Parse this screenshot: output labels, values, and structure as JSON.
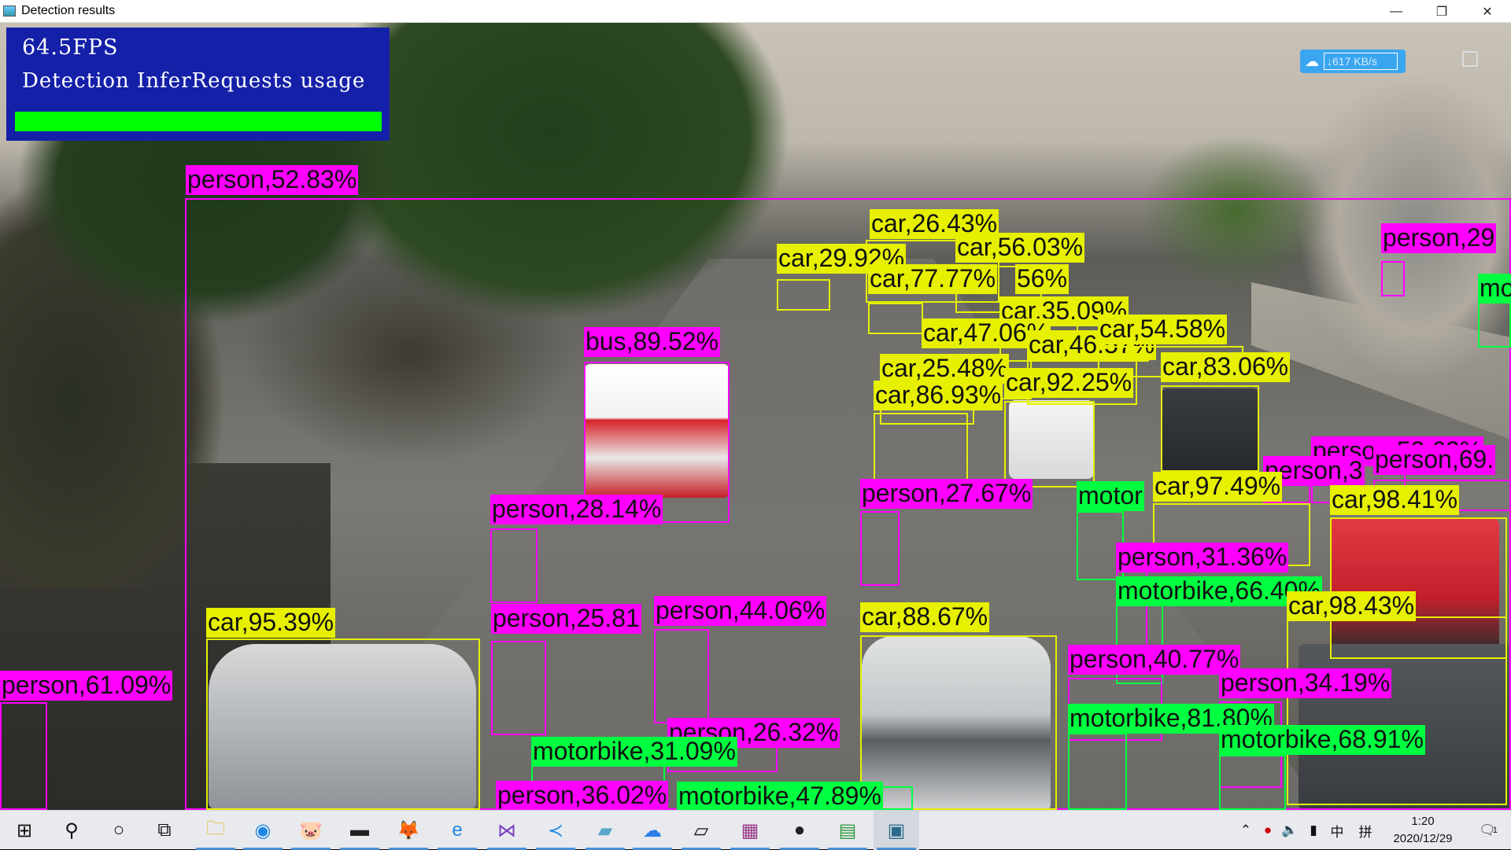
{
  "window": {
    "title": "Detection results",
    "minimize_icon": "minimize-icon",
    "restore_icon": "restore-icon",
    "close_icon": "close-icon"
  },
  "overlay": {
    "fps": "64.5FPS",
    "usage_label": "Detection InferRequests usage",
    "usage_fraction": 1.0,
    "bar_color": "#00ff00",
    "panel_color": "#1420a8"
  },
  "speed_widget": {
    "text": "617 KB/s",
    "icon": "download-arrow-icon"
  },
  "colors": {
    "person": "#ff00ff",
    "car": "#e6f000",
    "bus": "#ff00ff",
    "motorbike": "#00ff40"
  },
  "detections": [
    {
      "label": "person,52.83%",
      "cls": "person"
    },
    {
      "label": "bus,89.52%",
      "cls": "bus"
    },
    {
      "label": "car,26.43%",
      "cls": "car"
    },
    {
      "label": "car,29.92%",
      "cls": "car"
    },
    {
      "label": "car,56.03%",
      "cls": "car"
    },
    {
      "label": "car,77.77%",
      "cls": "car"
    },
    {
      "label": "56%",
      "cls": "car"
    },
    {
      "label": "car,35.09%",
      "cls": "car"
    },
    {
      "label": "car,47.06%",
      "cls": "car"
    },
    {
      "label": "car,46.57%",
      "cls": "car"
    },
    {
      "label": "car,54.58%",
      "cls": "car"
    },
    {
      "label": "car,25.48%",
      "cls": "car"
    },
    {
      "label": "car,92.25%",
      "cls": "car"
    },
    {
      "label": "car,83.06%",
      "cls": "car"
    },
    {
      "label": "car,86.93%",
      "cls": "car"
    },
    {
      "label": "person,29",
      "cls": "person"
    },
    {
      "label": "mo",
      "cls": "motorbike"
    },
    {
      "label": "person,52.62%",
      "cls": "person"
    },
    {
      "label": "person,69.",
      "cls": "person"
    },
    {
      "label": "person,3",
      "cls": "person"
    },
    {
      "label": "person,27.67%",
      "cls": "person"
    },
    {
      "label": "motor",
      "cls": "motorbike"
    },
    {
      "label": "car,97.49%",
      "cls": "car"
    },
    {
      "label": "car,98.41%",
      "cls": "car"
    },
    {
      "label": "person,28.14%",
      "cls": "person"
    },
    {
      "label": "person,31.36%",
      "cls": "person"
    },
    {
      "label": "motorbike,66.40%",
      "cls": "motorbike"
    },
    {
      "label": "car,98.43%",
      "cls": "car"
    },
    {
      "label": "person,25.81",
      "cls": "person"
    },
    {
      "label": "person,44.06%",
      "cls": "person"
    },
    {
      "label": "car,88.67%",
      "cls": "car"
    },
    {
      "label": "car,95.39%",
      "cls": "car"
    },
    {
      "label": "person,40.77%",
      "cls": "person"
    },
    {
      "label": "person,34.19%",
      "cls": "person"
    },
    {
      "label": "person,61.09%",
      "cls": "person"
    },
    {
      "label": "motorbike,81.80%",
      "cls": "motorbike"
    },
    {
      "label": "person,26.32%",
      "cls": "person"
    },
    {
      "label": "motorbike,68.91%",
      "cls": "motorbike"
    },
    {
      "label": "motorbike,31.09%",
      "cls": "motorbike"
    },
    {
      "label": "person,36.02%",
      "cls": "person"
    },
    {
      "label": "motorbike,47.89%",
      "cls": "motorbike"
    }
  ],
  "taskbar": {
    "apps": [
      "start-icon",
      "search-icon",
      "cortana-icon",
      "task-view-icon",
      "file-explorer-icon",
      "browser-icon",
      "app-pig-icon",
      "terminal-icon",
      "firefox-icon",
      "internet-explorer-icon",
      "visual-studio-icon",
      "vscode-icon",
      "app-blue-icon",
      "baidu-netdisk-icon",
      "app-file-icon",
      "winrar-icon",
      "github-icon",
      "app-chart-icon",
      "detection-window-icon"
    ],
    "tray": [
      "chevron-up-icon",
      "app-tray-icon",
      "volume-icon",
      "battery-icon"
    ],
    "ime": "中",
    "ime2": "拼",
    "time": "1:20",
    "date": "2020/12/29",
    "notification_icon": "notification-icon",
    "notification_count": "1"
  }
}
